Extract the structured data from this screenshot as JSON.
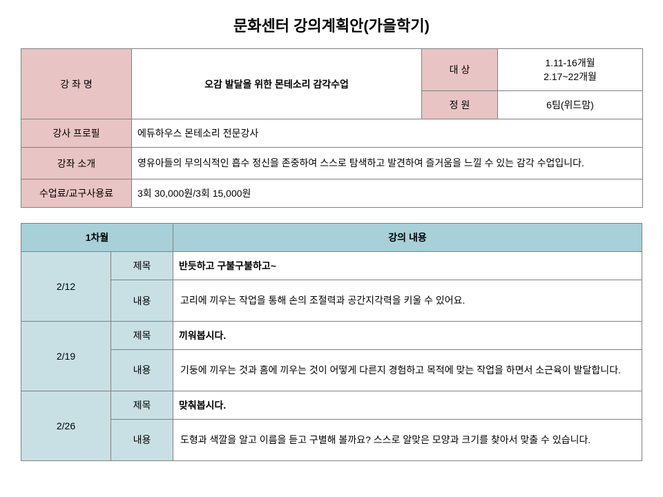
{
  "title": "문화센터 강의계획안(가을학기)",
  "info": {
    "course_name_label": "강 좌 명",
    "course_name_value": "오감 발달을 위한  몬테소리 감각수업",
    "target_label": "대 상",
    "target_value": "1.11-16개월\n2.17~22개월",
    "capacity_label": "정 원",
    "capacity_value": "6팀(위드맘)",
    "profile_label": "강사 프로필",
    "profile_value": "에듀하우스 몬테소리 전문강사",
    "intro_label": "강좌 소개",
    "intro_value": "영유아들의 무의식적인 흡수 정신을 존중하여 스스로 탐색하고  발견하여 즐거움을 느낄 수 있는 감각 수업입니다.",
    "fee_label": "수업료/교구사용료",
    "fee_value": "3회 30,000원/3회 15,000원"
  },
  "schedule": {
    "month_label": "1차월",
    "content_label": "강의 내용",
    "title_label": "제목",
    "desc_label": "내용",
    "rows": [
      {
        "date": "2/12",
        "title": "반듯하고 구불구불하고~",
        "desc": "고리에 끼우는 작업을 통해 손의 조절력과 공간지각력을 키울 수 있어요."
      },
      {
        "date": "2/19",
        "title": "끼워봅시다.",
        "desc": "기둥에 끼우는 것과 홈에 끼우는 것이 어떻게 다른지 경험하고 목적에 맞는 작업을 하면서 소근육이 발달합니다."
      },
      {
        "date": "2/26",
        "title": "맞춰봅시다.",
        "desc": "도형과 색깔을 알고 이름을 듣고 구별해 볼까요?  스스로 알맞은 모양과 크기를 찾아서 맞출 수 있습니다."
      }
    ]
  },
  "colors": {
    "pink": "#e8c4c4",
    "blue_header": "#a8d0d8",
    "blue_sub": "#c8e0e4",
    "border": "#808080"
  }
}
